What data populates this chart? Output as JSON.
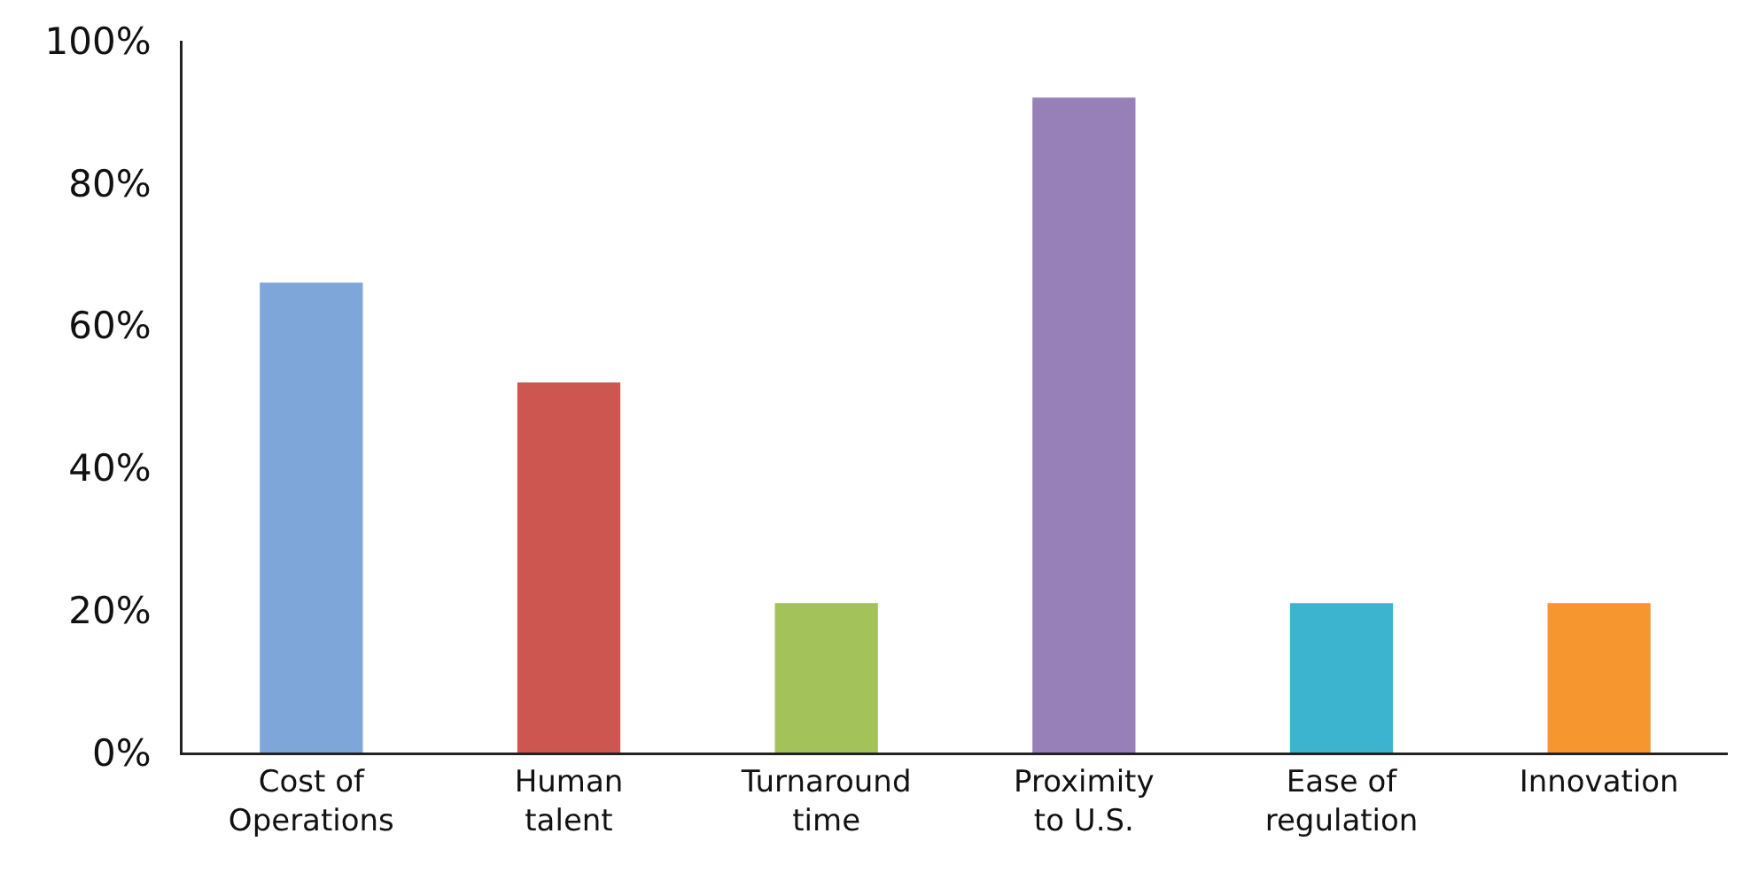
{
  "chart_data": {
    "type": "bar",
    "categories": [
      "Cost of Operations",
      "Human talent",
      "Turnaround time",
      "Proximity to U.S.",
      "Ease of regulation",
      "Innovation"
    ],
    "values": [
      66,
      52,
      21,
      92,
      21,
      21
    ],
    "colors": [
      "#7ea6d8",
      "#cd5750",
      "#a3c25a",
      "#977fb8",
      "#3db4cf",
      "#f5962f"
    ],
    "ylim": [
      0,
      100
    ],
    "yticks": [
      {
        "value": 0,
        "label": "0%"
      },
      {
        "value": 20,
        "label": "20%"
      },
      {
        "value": 40,
        "label": "40%"
      },
      {
        "value": 60,
        "label": "60%"
      },
      {
        "value": 80,
        "label": "80%"
      },
      {
        "value": 100,
        "label": "100%"
      }
    ],
    "grid": false,
    "legend": false
  }
}
